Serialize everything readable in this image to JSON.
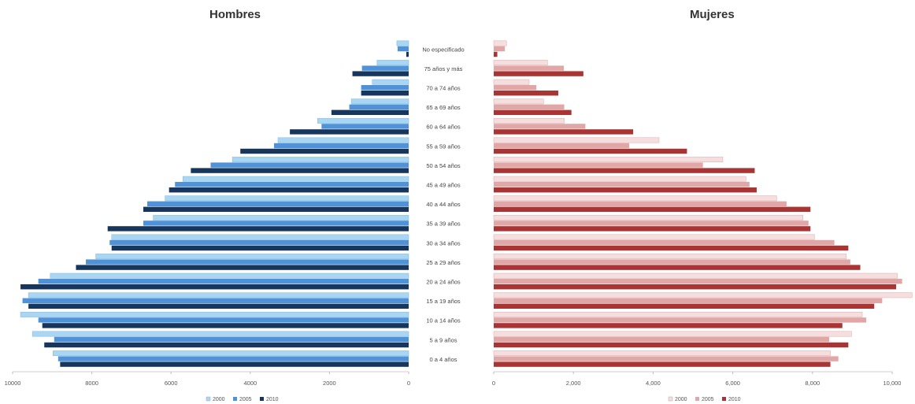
{
  "chart_data": {
    "type": "bar",
    "orientation": "horizontal",
    "layout": "population-pyramid",
    "categories": [
      "0 a 4 años",
      "5 a 9 años",
      "10 a 14 años",
      "15 a 19 años",
      "20 a 24 años",
      "25 a 29 años",
      "30 a 34 años",
      "35 a 39 años",
      "40 a 44 años",
      "45 a 49 años",
      "50 a 54 años",
      "55 a 59 años",
      "60 a 64 años",
      "65 a 69 años",
      "70 a 74 años",
      "75 años y más",
      "No especificado"
    ],
    "panels": [
      {
        "title": "Hombres",
        "direction": "left",
        "xlim": [
          -10000,
          0
        ],
        "ticks": [
          -10000,
          -8000,
          -6000,
          -4000,
          -2000,
          0
        ],
        "tick_labels": [
          "10000",
          "8000",
          "6000",
          "4000",
          "2000",
          "0"
        ],
        "colors": [
          "#a9d6f2",
          "#4f92d8",
          "#17365d"
        ],
        "series": [
          {
            "name": "2000",
            "values": [
              8980,
              9500,
              9800,
              9600,
              9050,
              7900,
              7500,
              6450,
              6150,
              5700,
              4450,
              3300,
              2300,
              1450,
              920,
              800,
              300
            ]
          },
          {
            "name": "2005",
            "values": [
              8850,
              8950,
              9350,
              9750,
              9350,
              8150,
              7550,
              6700,
              6600,
              5900,
              5000,
              3400,
              2200,
              1500,
              1200,
              1180,
              280
            ]
          },
          {
            "name": "2010",
            "values": [
              8800,
              9200,
              9250,
              9600,
              9800,
              8400,
              7500,
              7600,
              6700,
              6050,
              5500,
              4250,
              3000,
              1950,
              1200,
              1420,
              60
            ]
          }
        ],
        "legend": [
          "2000",
          "2005",
          "2010"
        ]
      },
      {
        "title": "Mujeres",
        "direction": "right",
        "xlim": [
          0,
          10000
        ],
        "ticks": [
          0,
          2000,
          4000,
          6000,
          8000,
          10000
        ],
        "tick_labels": [
          "0",
          "2,000",
          "4,000",
          "6,000",
          "8,000",
          "10,000"
        ],
        "colors": [
          "#f6dede",
          "#e1a7a6",
          "#a83434"
        ],
        "series": [
          {
            "name": "2000",
            "values": [
              8450,
              8980,
              9250,
              10500,
              10130,
              8850,
              8050,
              7760,
              7100,
              6330,
              5750,
              4150,
              1770,
              1250,
              890,
              1350,
              320
            ]
          },
          {
            "name": "2005",
            "values": [
              8650,
              8420,
              9350,
              9750,
              10250,
              8950,
              8550,
              7900,
              7350,
              6420,
              5250,
              3400,
              2300,
              1770,
              1070,
              1760,
              280
            ]
          },
          {
            "name": "2010",
            "values": [
              8450,
              8900,
              8750,
              9550,
              10100,
              9200,
              8900,
              7950,
              7950,
              6600,
              6550,
              4850,
              3500,
              1950,
              1620,
              2250,
              90
            ]
          }
        ],
        "legend": [
          "2000",
          "2005",
          "2010"
        ]
      }
    ]
  }
}
